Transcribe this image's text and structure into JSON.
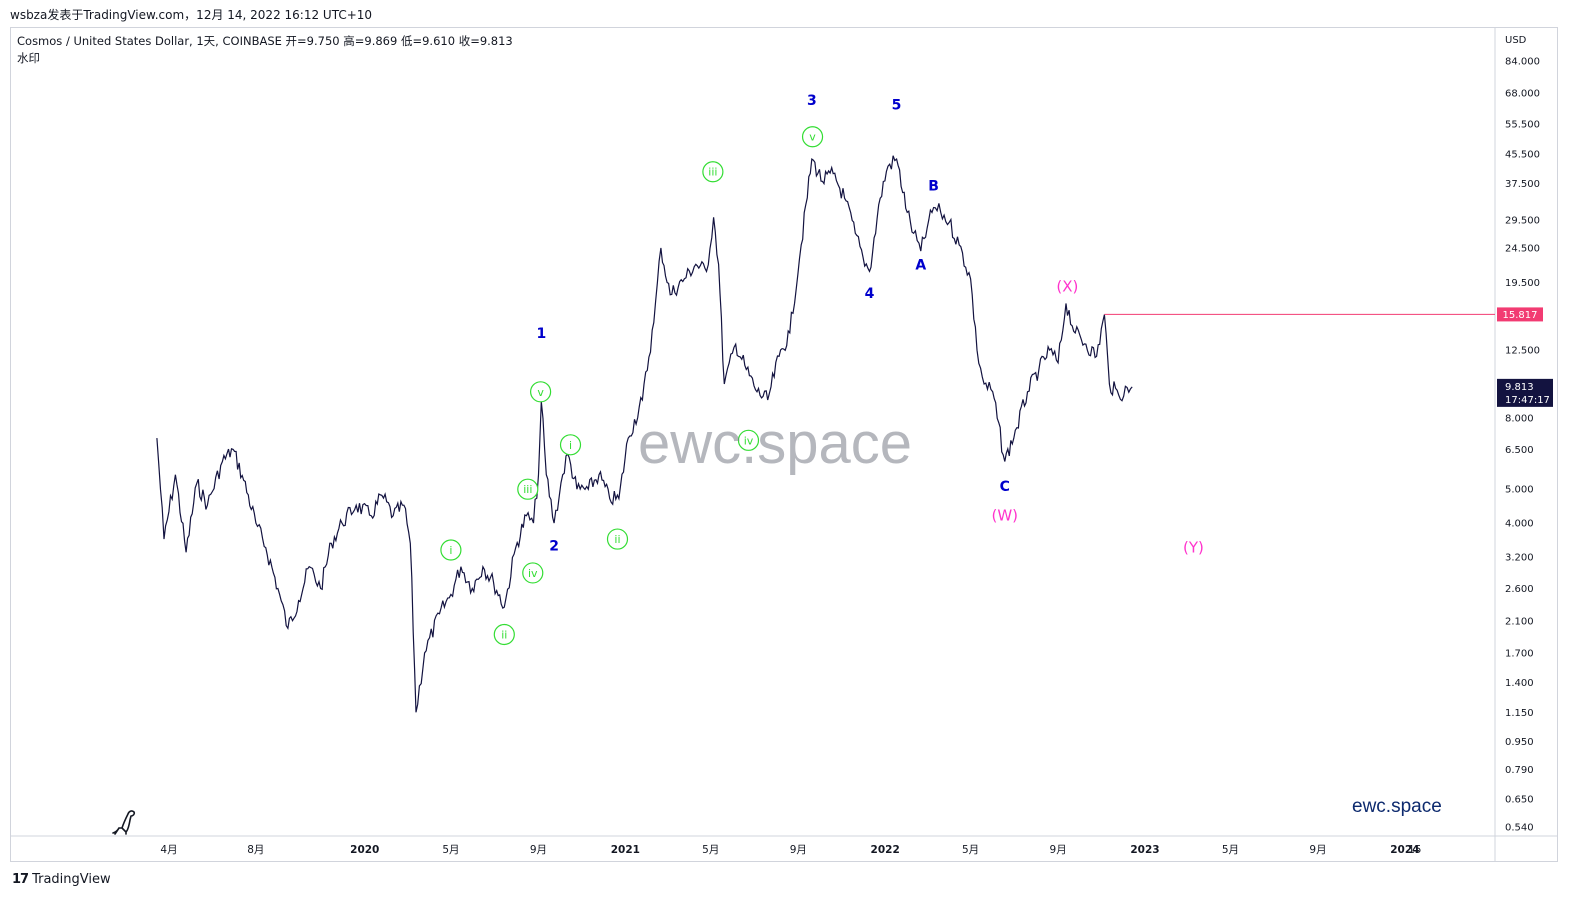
{
  "header": {
    "caption": "wsbza发表于TradingView.com，12月 14, 2022 16:12 UTC+10",
    "symbol_line": "Cosmos / United States Dollar, 1天, COINBASE  开=9.750  高=9.869  低=9.610  收=9.813",
    "watermark_label": "水印"
  },
  "watermark_text": "ewc.space",
  "corner_brand": "ewc.space",
  "footer": {
    "logo": "17",
    "brand": "TradingView"
  },
  "colors": {
    "candles": "#131340",
    "wave_primary": "#0000cc",
    "wave_minor": "#33dd33",
    "wave_correction": "#ff33cc",
    "level_line": "#f23b72",
    "price_tag_dark": "#131340"
  },
  "chart_data": {
    "type": "line",
    "title": "Cosmos / United States Dollar, 1天, COINBASE",
    "y_scale": "log",
    "ylabel": "USD",
    "ylim": [
      0.5,
      100
    ],
    "y_ticks": [
      "84.000",
      "68.000",
      "55.500",
      "45.500",
      "37.500",
      "29.500",
      "24.500",
      "19.500",
      "12.500",
      "8.000",
      "6.500",
      "5.000",
      "4.000",
      "3.200",
      "2.600",
      "2.100",
      "1.700",
      "1.400",
      "1.150",
      "0.950",
      "0.790",
      "0.650",
      "0.540"
    ],
    "y_tick_values": [
      84,
      68,
      55.5,
      45.5,
      37.5,
      29.5,
      24.5,
      19.5,
      12.5,
      8,
      6.5,
      5,
      4,
      3.2,
      2.6,
      2.1,
      1.7,
      1.4,
      1.15,
      0.95,
      0.79,
      0.65,
      0.54
    ],
    "x_ticks": [
      "4月",
      "8月",
      "2020",
      "5月",
      "9月",
      "2021",
      "5月",
      "9月",
      "2022",
      "5月",
      "9月",
      "2023",
      "5月",
      "9月",
      "2024",
      "15"
    ],
    "x_tick_dates": [
      "2019-04-01",
      "2019-08-01",
      "2020-01-01",
      "2020-05-01",
      "2020-09-01",
      "2021-01-01",
      "2021-05-01",
      "2021-09-01",
      "2022-01-01",
      "2022-05-01",
      "2022-09-01",
      "2023-01-01",
      "2023-05-01",
      "2023-09-01",
      "2024-01-01",
      "2024-01-15"
    ],
    "x_bold_ticks": [
      "2020",
      "2021",
      "2022",
      "2023",
      "2024"
    ],
    "series": [
      {
        "values": [
          [
            "2019-03-15",
            7.0
          ],
          [
            "2019-03-25",
            3.6
          ],
          [
            "2019-04-10",
            5.5
          ],
          [
            "2019-04-25",
            3.3
          ],
          [
            "2019-05-10",
            5.2
          ],
          [
            "2019-05-25",
            4.5
          ],
          [
            "2019-06-15",
            6.0
          ],
          [
            "2019-06-30",
            6.5
          ],
          [
            "2019-07-15",
            5.3
          ],
          [
            "2019-08-01",
            4.0
          ],
          [
            "2019-08-15",
            3.4
          ],
          [
            "2019-09-01",
            2.6
          ],
          [
            "2019-09-15",
            2.0
          ],
          [
            "2019-09-30",
            2.4
          ],
          [
            "2019-10-15",
            3.0
          ],
          [
            "2019-10-31",
            2.6
          ],
          [
            "2019-11-15",
            3.5
          ],
          [
            "2019-11-30",
            4.0
          ],
          [
            "2019-12-20",
            4.5
          ],
          [
            "2020-01-10",
            4.2
          ],
          [
            "2020-01-25",
            4.8
          ],
          [
            "2020-02-10",
            4.2
          ],
          [
            "2020-02-25",
            4.5
          ],
          [
            "2020-03-05",
            3.5
          ],
          [
            "2020-03-13",
            1.15
          ],
          [
            "2020-03-25",
            1.7
          ],
          [
            "2020-04-15",
            2.2
          ],
          [
            "2020-05-01",
            2.5
          ],
          [
            "2020-05-15",
            3.0
          ],
          [
            "2020-05-31",
            2.6
          ],
          [
            "2020-06-15",
            3.0
          ],
          [
            "2020-06-30",
            2.7
          ],
          [
            "2020-07-15",
            2.3
          ],
          [
            "2020-07-31",
            3.4
          ],
          [
            "2020-08-15",
            4.2
          ],
          [
            "2020-08-25",
            4.0
          ],
          [
            "2020-09-01",
            5.5
          ],
          [
            "2020-09-05",
            8.9
          ],
          [
            "2020-09-12",
            5.5
          ],
          [
            "2020-09-23",
            4.0
          ],
          [
            "2020-10-05",
            5.5
          ],
          [
            "2020-10-12",
            6.3
          ],
          [
            "2020-10-25",
            5.0
          ],
          [
            "2020-11-10",
            5.0
          ],
          [
            "2020-11-25",
            5.5
          ],
          [
            "2020-12-10",
            4.7
          ],
          [
            "2020-12-23",
            4.7
          ],
          [
            "2021-01-05",
            7.0
          ],
          [
            "2021-01-25",
            9.0
          ],
          [
            "2021-02-10",
            15.0
          ],
          [
            "2021-02-20",
            24.5
          ],
          [
            "2021-03-05",
            18.0
          ],
          [
            "2021-03-25",
            20.0
          ],
          [
            "2021-04-10",
            22.0
          ],
          [
            "2021-04-25",
            21.0
          ],
          [
            "2021-05-05",
            30.0
          ],
          [
            "2021-05-12",
            22.0
          ],
          [
            "2021-05-20",
            10.0
          ],
          [
            "2021-06-05",
            13.0
          ],
          [
            "2021-06-20",
            11.0
          ],
          [
            "2021-07-05",
            9.5
          ],
          [
            "2021-07-20",
            9.0
          ],
          [
            "2021-08-05",
            12.0
          ],
          [
            "2021-08-20",
            14.0
          ],
          [
            "2021-09-05",
            25.0
          ],
          [
            "2021-09-20",
            44.0
          ],
          [
            "2021-10-05",
            38.0
          ],
          [
            "2021-10-20",
            40.0
          ],
          [
            "2021-11-05",
            34.0
          ],
          [
            "2021-11-20",
            27.0
          ],
          [
            "2021-12-01",
            23.0
          ],
          [
            "2021-12-10",
            21.0
          ],
          [
            "2021-12-25",
            34.0
          ],
          [
            "2022-01-05",
            42.0
          ],
          [
            "2022-01-17",
            44.0
          ],
          [
            "2022-02-01",
            31.0
          ],
          [
            "2022-02-10",
            27.0
          ],
          [
            "2022-02-20",
            24.0
          ],
          [
            "2022-03-01",
            28.0
          ],
          [
            "2022-03-10",
            32.0
          ],
          [
            "2022-03-20",
            31.0
          ],
          [
            "2022-04-01",
            29.0
          ],
          [
            "2022-04-15",
            25.0
          ],
          [
            "2022-05-01",
            20.0
          ],
          [
            "2022-05-10",
            12.5
          ],
          [
            "2022-05-20",
            10.0
          ],
          [
            "2022-06-01",
            9.5
          ],
          [
            "2022-06-18",
            6.0
          ],
          [
            "2022-07-05",
            7.5
          ],
          [
            "2022-07-20",
            9.5
          ],
          [
            "2022-08-05",
            11.0
          ],
          [
            "2022-08-20",
            12.5
          ],
          [
            "2022-09-01",
            11.5
          ],
          [
            "2022-09-12",
            17.0
          ],
          [
            "2022-09-25",
            14.0
          ],
          [
            "2022-10-10",
            13.0
          ],
          [
            "2022-10-25",
            12.0
          ],
          [
            "2022-11-05",
            15.8
          ],
          [
            "2022-11-12",
            10.0
          ],
          [
            "2022-11-25",
            9.3
          ],
          [
            "2022-12-14",
            9.813
          ]
        ]
      }
    ],
    "annotations": {
      "primary": [
        {
          "label": "1",
          "date": "2020-09-05",
          "price": 14.0
        },
        {
          "label": "2",
          "date": "2020-09-23",
          "price": 3.45
        },
        {
          "label": "3",
          "date": "2021-09-20",
          "price": 65.0
        },
        {
          "label": "4",
          "date": "2021-12-10",
          "price": 18.2
        },
        {
          "label": "5",
          "date": "2022-01-17",
          "price": 63.0
        },
        {
          "label": "A",
          "date": "2022-02-20",
          "price": 22.0
        },
        {
          "label": "B",
          "date": "2022-03-10",
          "price": 37.0
        },
        {
          "label": "C",
          "date": "2022-06-18",
          "price": 5.1
        }
      ],
      "minor": [
        {
          "label": "i",
          "date": "2020-05-01",
          "price": 3.35
        },
        {
          "label": "ii",
          "date": "2020-07-15",
          "price": 1.92
        },
        {
          "label": "iii",
          "date": "2020-08-17",
          "price": 5.0
        },
        {
          "label": "iv",
          "date": "2020-08-24",
          "price": 2.88
        },
        {
          "label": "v",
          "date": "2020-09-04",
          "price": 9.5
        },
        {
          "label": "i",
          "date": "2020-10-16",
          "price": 6.7
        },
        {
          "label": "ii",
          "date": "2020-12-21",
          "price": 3.6
        },
        {
          "label": "iii",
          "date": "2021-05-04",
          "price": 40.5
        },
        {
          "label": "iv",
          "date": "2021-06-23",
          "price": 6.9
        },
        {
          "label": "v",
          "date": "2021-09-21",
          "price": 51.0
        }
      ],
      "correction": [
        {
          "label": "(W)",
          "date": "2022-06-18",
          "price": 4.2
        },
        {
          "label": "(X)",
          "date": "2022-09-14",
          "price": 19.0
        },
        {
          "label": "(Y)",
          "date": "2023-03-10",
          "price": 3.4
        }
      ]
    },
    "level_line": {
      "value": 15.817,
      "label": "15.817",
      "start": "2022-11-05"
    },
    "last_price": {
      "value": 9.813,
      "label": "9.813",
      "countdown": "17:47:17"
    }
  }
}
